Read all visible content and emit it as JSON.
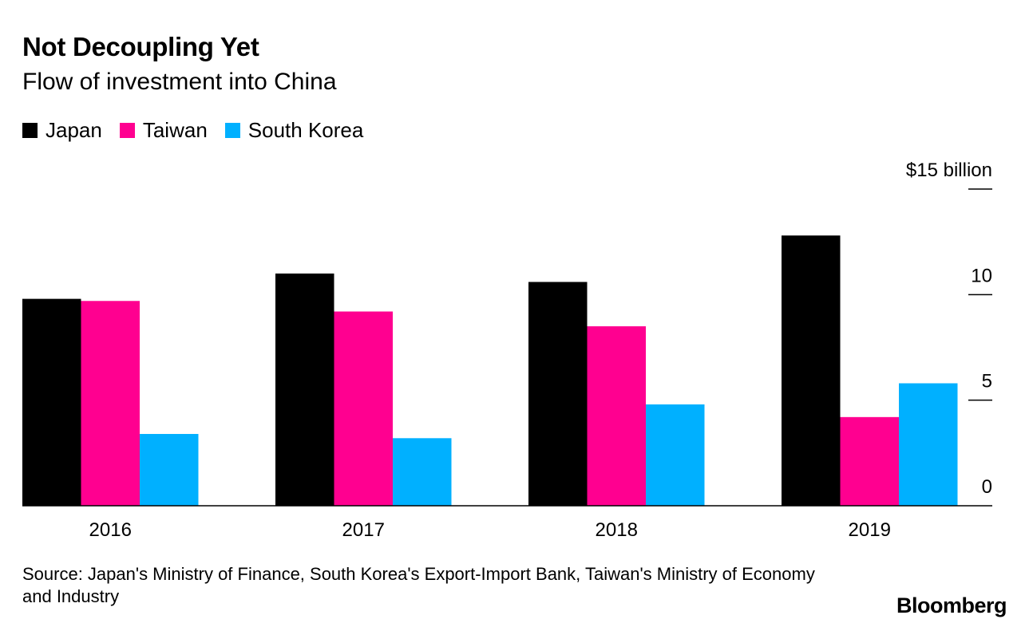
{
  "header": {
    "title": "Not Decoupling Yet",
    "subtitle": "Flow of investment into China"
  },
  "legend": [
    {
      "label": "Japan",
      "color": "#000000"
    },
    {
      "label": "Taiwan",
      "color": "#ff0090"
    },
    {
      "label": "South Korea",
      "color": "#00b0ff"
    }
  ],
  "chart_data": {
    "type": "bar",
    "title": "Not Decoupling Yet",
    "subtitle": "Flow of investment into China",
    "categories": [
      "2016",
      "2017",
      "2018",
      "2019"
    ],
    "series": [
      {
        "name": "Japan",
        "color": "#000000",
        "values": [
          9.8,
          11.0,
          10.6,
          12.8
        ]
      },
      {
        "name": "Taiwan",
        "color": "#ff0090",
        "values": [
          9.7,
          9.2,
          8.5,
          4.2
        ]
      },
      {
        "name": "South Korea",
        "color": "#00b0ff",
        "values": [
          3.4,
          3.2,
          4.8,
          5.8
        ]
      }
    ],
    "ylim": [
      0,
      15
    ],
    "yticks": [
      0,
      5,
      10,
      15
    ],
    "ytick_labels": [
      "0",
      "5",
      "10",
      "$15 billion"
    ],
    "yaxis_position": "right",
    "grid": false,
    "legend_position": "top-left"
  },
  "footer": {
    "source": "Source: Japan's Ministry of Finance, South Korea's Export-Import Bank, Taiwan's Ministry of Economy and Industry",
    "brand": "Bloomberg"
  }
}
